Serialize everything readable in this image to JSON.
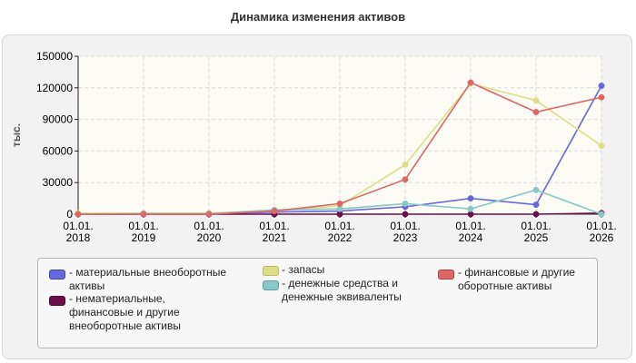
{
  "chart_data": {
    "type": "line",
    "title": "Динамика изменения активов",
    "ylabel": "тыс.",
    "xlabel": "",
    "ylim": [
      0,
      150000
    ],
    "yticks": [
      "150000",
      "120000",
      "90000",
      "60000",
      "30000",
      "0"
    ],
    "ytick_values": [
      150000,
      120000,
      90000,
      60000,
      30000,
      0
    ],
    "categories": [
      "01.01.\n2018",
      "01.01.\n2019",
      "01.01.\n2020",
      "01.01.\n2021",
      "01.01.\n2022",
      "01.01.\n2023",
      "01.01.\n2024",
      "01.01.\n2025",
      "01.01.\n2026"
    ],
    "grid": true,
    "legend_position": "bottom",
    "series": [
      {
        "name": "- материальные внеоборотные активы",
        "color": "#6666dd",
        "values": [
          0,
          0,
          0,
          2000,
          3000,
          7000,
          15000,
          9000,
          122000
        ]
      },
      {
        "name": "- нематериальные, финансовые и другие внеоборотные активы",
        "color": "#6b1048",
        "values": [
          0,
          0,
          0,
          0,
          0,
          0,
          0,
          0,
          1000
        ]
      },
      {
        "name": "- запасы",
        "color": "#dede88",
        "values": [
          1000,
          1000,
          1000,
          3000,
          8000,
          47000,
          124000,
          108000,
          65000
        ]
      },
      {
        "name": "- денежные средства и денежные эквиваленты",
        "color": "#88c8c8",
        "values": [
          0,
          500,
          500,
          4000,
          5000,
          10000,
          5000,
          23000,
          0
        ]
      },
      {
        "name": "- финансовые и другие оборотные активы",
        "color": "#dd6666",
        "values": [
          0,
          0,
          0,
          3000,
          10000,
          33000,
          125000,
          97000,
          111000
        ]
      }
    ]
  }
}
